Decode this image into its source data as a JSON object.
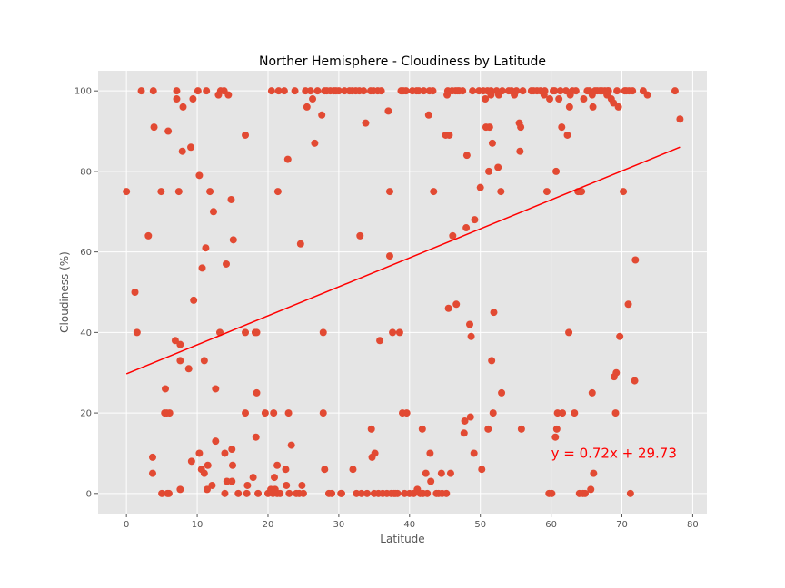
{
  "chart_data": {
    "type": "scatter",
    "title": "Norther Hemisphere - Cloudiness by Latitude",
    "xlabel": "Latitude",
    "ylabel": "Cloudiness (%)",
    "xlim": [
      -4,
      82
    ],
    "ylim": [
      -5,
      105
    ],
    "xticks": [
      0,
      10,
      20,
      30,
      40,
      50,
      60,
      70,
      80
    ],
    "yticks": [
      0,
      20,
      40,
      60,
      80,
      100
    ],
    "grid": true,
    "colors": {
      "points": "#E24A33",
      "line": "#FF0000",
      "background": "#E5E5E5",
      "grid": "#FFFFFF",
      "annotation": "#FF0000"
    },
    "regression": {
      "slope": 0.72,
      "intercept": 29.73,
      "x_range": [
        0.0,
        78.2
      ]
    },
    "annotation": {
      "text": "y = 0.72x + 29.73",
      "x": 60,
      "y": 10
    },
    "points": [
      [
        0.0,
        75
      ],
      [
        1.2,
        50
      ],
      [
        1.5,
        40
      ],
      [
        2.1,
        100
      ],
      [
        3.1,
        64
      ],
      [
        3.8,
        100
      ],
      [
        3.9,
        91
      ],
      [
        3.7,
        9
      ],
      [
        3.7,
        5
      ],
      [
        4.9,
        75
      ],
      [
        5.0,
        0
      ],
      [
        5.4,
        20
      ],
      [
        5.5,
        26
      ],
      [
        5.7,
        20
      ],
      [
        5.8,
        0
      ],
      [
        5.9,
        90
      ],
      [
        6.1,
        20
      ],
      [
        6.0,
        0
      ],
      [
        6.9,
        38
      ],
      [
        7.1,
        100
      ],
      [
        7.1,
        98
      ],
      [
        7.4,
        75
      ],
      [
        7.6,
        33
      ],
      [
        7.6,
        37
      ],
      [
        7.6,
        1
      ],
      [
        7.9,
        85
      ],
      [
        8.0,
        96
      ],
      [
        8.8,
        31
      ],
      [
        9.1,
        86
      ],
      [
        9.2,
        8
      ],
      [
        9.4,
        98
      ],
      [
        9.5,
        48
      ],
      [
        10.1,
        100
      ],
      [
        10.3,
        79
      ],
      [
        10.3,
        10
      ],
      [
        10.6,
        6
      ],
      [
        10.7,
        56
      ],
      [
        11.0,
        33
      ],
      [
        11.0,
        5
      ],
      [
        11.2,
        61
      ],
      [
        11.3,
        100
      ],
      [
        11.4,
        1
      ],
      [
        11.5,
        7
      ],
      [
        11.8,
        75
      ],
      [
        12.1,
        2
      ],
      [
        12.3,
        70
      ],
      [
        12.6,
        26
      ],
      [
        12.6,
        13
      ],
      [
        13.0,
        99
      ],
      [
        13.2,
        40
      ],
      [
        13.3,
        100
      ],
      [
        13.8,
        100
      ],
      [
        13.9,
        10
      ],
      [
        13.9,
        0
      ],
      [
        14.1,
        57
      ],
      [
        14.2,
        3
      ],
      [
        14.4,
        99
      ],
      [
        14.8,
        73
      ],
      [
        14.9,
        3
      ],
      [
        14.9,
        11
      ],
      [
        15.0,
        7
      ],
      [
        15.1,
        63
      ],
      [
        15.8,
        0
      ],
      [
        16.8,
        89
      ],
      [
        16.8,
        40
      ],
      [
        16.8,
        20
      ],
      [
        17.0,
        0
      ],
      [
        17.1,
        2
      ],
      [
        17.9,
        4
      ],
      [
        18.2,
        40
      ],
      [
        18.3,
        14
      ],
      [
        18.4,
        40
      ],
      [
        18.4,
        25
      ],
      [
        18.6,
        0
      ],
      [
        19.6,
        20
      ],
      [
        20.0,
        0
      ],
      [
        20.4,
        1
      ],
      [
        20.5,
        100
      ],
      [
        20.7,
        0
      ],
      [
        20.8,
        20
      ],
      [
        20.9,
        4
      ],
      [
        21.0,
        1
      ],
      [
        21.3,
        0
      ],
      [
        21.3,
        7
      ],
      [
        21.4,
        75
      ],
      [
        21.5,
        100
      ],
      [
        21.7,
        0
      ],
      [
        22.3,
        100
      ],
      [
        22.5,
        6
      ],
      [
        22.6,
        2
      ],
      [
        22.8,
        83
      ],
      [
        22.9,
        20
      ],
      [
        23.0,
        0
      ],
      [
        23.3,
        12
      ],
      [
        23.8,
        100
      ],
      [
        24.0,
        0
      ],
      [
        24.4,
        0
      ],
      [
        24.6,
        62
      ],
      [
        24.8,
        2
      ],
      [
        25.0,
        0
      ],
      [
        25.3,
        100
      ],
      [
        25.5,
        96
      ],
      [
        26.0,
        100
      ],
      [
        26.3,
        98
      ],
      [
        26.6,
        87
      ],
      [
        27.0,
        100
      ],
      [
        27.6,
        94
      ],
      [
        27.8,
        40
      ],
      [
        27.8,
        20
      ],
      [
        28.0,
        6
      ],
      [
        28.0,
        100
      ],
      [
        28.3,
        100
      ],
      [
        28.6,
        0
      ],
      [
        28.8,
        100
      ],
      [
        29.0,
        0
      ],
      [
        29.3,
        100
      ],
      [
        29.6,
        100
      ],
      [
        30.0,
        100
      ],
      [
        30.3,
        0
      ],
      [
        30.4,
        0
      ],
      [
        30.8,
        100
      ],
      [
        31.5,
        100
      ],
      [
        31.9,
        100
      ],
      [
        32.0,
        6
      ],
      [
        32.4,
        100
      ],
      [
        32.5,
        0
      ],
      [
        32.9,
        100
      ],
      [
        33.0,
        64
      ],
      [
        33.2,
        0
      ],
      [
        33.5,
        100
      ],
      [
        33.8,
        92
      ],
      [
        34.0,
        0
      ],
      [
        34.5,
        100
      ],
      [
        34.6,
        16
      ],
      [
        34.7,
        9
      ],
      [
        34.9,
        100
      ],
      [
        35.0,
        0
      ],
      [
        35.1,
        10
      ],
      [
        35.5,
        100
      ],
      [
        35.6,
        0
      ],
      [
        35.8,
        38
      ],
      [
        36.0,
        100
      ],
      [
        36.2,
        0
      ],
      [
        36.8,
        0
      ],
      [
        37.0,
        95
      ],
      [
        37.2,
        75
      ],
      [
        37.2,
        59
      ],
      [
        37.4,
        0
      ],
      [
        37.6,
        40
      ],
      [
        37.8,
        0
      ],
      [
        38.0,
        0
      ],
      [
        38.3,
        0
      ],
      [
        38.6,
        40
      ],
      [
        38.8,
        100
      ],
      [
        39.0,
        20
      ],
      [
        39.1,
        100
      ],
      [
        39.3,
        0
      ],
      [
        39.5,
        100
      ],
      [
        39.6,
        20
      ],
      [
        40.0,
        0
      ],
      [
        40.4,
        100
      ],
      [
        40.6,
        0
      ],
      [
        41.0,
        100
      ],
      [
        41.1,
        1
      ],
      [
        41.3,
        100
      ],
      [
        41.5,
        0
      ],
      [
        41.8,
        16
      ],
      [
        41.9,
        0
      ],
      [
        42.0,
        100
      ],
      [
        42.3,
        5
      ],
      [
        42.5,
        0
      ],
      [
        42.7,
        94
      ],
      [
        42.8,
        100
      ],
      [
        42.9,
        10
      ],
      [
        43.0,
        3
      ],
      [
        43.3,
        100
      ],
      [
        43.4,
        75
      ],
      [
        43.8,
        0
      ],
      [
        44.1,
        0
      ],
      [
        44.5,
        5
      ],
      [
        44.6,
        0
      ],
      [
        45.1,
        89
      ],
      [
        45.2,
        0
      ],
      [
        45.3,
        99
      ],
      [
        45.4,
        100
      ],
      [
        45.5,
        46
      ],
      [
        45.6,
        89
      ],
      [
        45.8,
        5
      ],
      [
        46.0,
        100
      ],
      [
        46.1,
        64
      ],
      [
        46.5,
        100
      ],
      [
        46.6,
        47
      ],
      [
        46.8,
        100
      ],
      [
        47.0,
        100
      ],
      [
        47.5,
        100
      ],
      [
        47.7,
        15
      ],
      [
        47.8,
        18
      ],
      [
        48.0,
        66
      ],
      [
        48.1,
        84
      ],
      [
        48.5,
        42
      ],
      [
        48.6,
        19
      ],
      [
        48.7,
        39
      ],
      [
        48.9,
        100
      ],
      [
        49.2,
        68
      ],
      [
        49.1,
        10
      ],
      [
        49.8,
        100
      ],
      [
        50.0,
        76
      ],
      [
        50.2,
        6
      ],
      [
        50.4,
        100
      ],
      [
        50.7,
        98
      ],
      [
        50.8,
        91
      ],
      [
        51.0,
        100
      ],
      [
        51.1,
        16
      ],
      [
        51.2,
        80
      ],
      [
        51.3,
        91
      ],
      [
        51.5,
        100
      ],
      [
        51.5,
        99
      ],
      [
        51.6,
        33
      ],
      [
        51.7,
        87
      ],
      [
        51.8,
        20
      ],
      [
        51.9,
        45
      ],
      [
        52.3,
        100
      ],
      [
        52.5,
        81
      ],
      [
        52.6,
        99
      ],
      [
        52.9,
        75
      ],
      [
        53.0,
        25
      ],
      [
        53.1,
        100
      ],
      [
        54.0,
        100
      ],
      [
        54.4,
        100
      ],
      [
        54.8,
        99
      ],
      [
        55.1,
        100
      ],
      [
        55.5,
        92
      ],
      [
        55.6,
        85
      ],
      [
        55.7,
        91
      ],
      [
        55.8,
        16
      ],
      [
        56.0,
        100
      ],
      [
        57.2,
        100
      ],
      [
        57.5,
        100
      ],
      [
        58.0,
        100
      ],
      [
        58.5,
        100
      ],
      [
        59.0,
        99
      ],
      [
        59.1,
        100
      ],
      [
        59.4,
        75
      ],
      [
        59.7,
        0
      ],
      [
        59.8,
        98
      ],
      [
        60.1,
        0
      ],
      [
        60.3,
        100
      ],
      [
        60.5,
        100
      ],
      [
        60.6,
        14
      ],
      [
        60.7,
        80
      ],
      [
        60.8,
        16
      ],
      [
        60.9,
        20
      ],
      [
        61.1,
        98
      ],
      [
        61.3,
        100
      ],
      [
        61.5,
        91
      ],
      [
        61.6,
        20
      ],
      [
        62.1,
        100
      ],
      [
        62.3,
        89
      ],
      [
        62.5,
        40
      ],
      [
        62.6,
        96
      ],
      [
        62.7,
        99
      ],
      [
        63.0,
        100
      ],
      [
        63.3,
        20
      ],
      [
        63.5,
        100
      ],
      [
        63.8,
        75
      ],
      [
        64.0,
        0
      ],
      [
        64.1,
        75
      ],
      [
        64.3,
        75
      ],
      [
        64.5,
        0
      ],
      [
        64.6,
        98
      ],
      [
        64.8,
        0
      ],
      [
        65.1,
        100
      ],
      [
        65.4,
        100
      ],
      [
        65.6,
        1
      ],
      [
        65.8,
        25
      ],
      [
        65.8,
        99
      ],
      [
        65.9,
        96
      ],
      [
        66.0,
        5
      ],
      [
        66.2,
        100
      ],
      [
        66.5,
        100
      ],
      [
        66.9,
        100
      ],
      [
        67.2,
        100
      ],
      [
        67.6,
        100
      ],
      [
        67.9,
        99
      ],
      [
        68.0,
        100
      ],
      [
        68.1,
        100
      ],
      [
        68.5,
        98
      ],
      [
        68.8,
        97
      ],
      [
        68.9,
        29
      ],
      [
        69.1,
        20
      ],
      [
        69.2,
        30
      ],
      [
        69.3,
        100
      ],
      [
        69.5,
        96
      ],
      [
        69.7,
        39
      ],
      [
        70.2,
        75
      ],
      [
        70.4,
        100
      ],
      [
        70.6,
        100
      ],
      [
        70.9,
        47
      ],
      [
        71.0,
        100
      ],
      [
        71.2,
        0
      ],
      [
        71.5,
        100
      ],
      [
        71.8,
        28
      ],
      [
        71.9,
        58
      ],
      [
        73.0,
        100
      ],
      [
        73.6,
        99
      ],
      [
        77.5,
        100
      ],
      [
        78.2,
        93
      ]
    ]
  }
}
